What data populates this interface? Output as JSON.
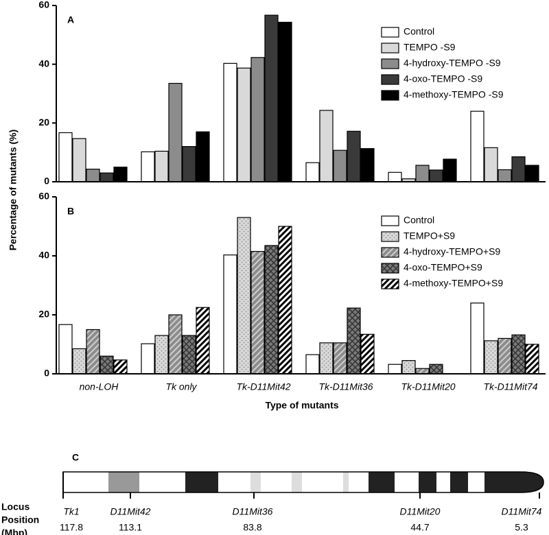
{
  "chart_data": [
    {
      "type": "bar",
      "panel": "A",
      "y_label": "Percentage of mutants (%)",
      "ylim": [
        0,
        60
      ],
      "yticks": [
        0,
        20,
        40,
        60
      ],
      "legend": "upper right",
      "series": [
        {
          "name": "Control",
          "color": "#ffffff",
          "values": [
            16.7,
            10.2,
            40.3,
            6.5,
            3.2,
            24.0
          ]
        },
        {
          "name": "TEMPO -S9",
          "color": "#d9d9d9",
          "values": [
            14.7,
            10.4,
            38.7,
            24.3,
            1.0,
            11.6
          ]
        },
        {
          "name": "4-hydroxy-TEMPO -S9",
          "color": "#8c8c8c",
          "values": [
            4.3,
            33.5,
            42.3,
            10.7,
            5.6,
            4.1
          ]
        },
        {
          "name": "4-oxo-TEMPO -S9",
          "color": "#3a3a3a",
          "values": [
            3.0,
            12.0,
            56.7,
            17.2,
            4.0,
            8.5
          ]
        },
        {
          "name": "4-methoxy-TEMPO -S9",
          "color": "#000000",
          "values": [
            5.0,
            17.0,
            54.3,
            11.3,
            7.7,
            5.6
          ]
        }
      ]
    },
    {
      "type": "bar",
      "panel": "B",
      "x_label": "Type of mutants",
      "categories": [
        "non-LOH",
        "Tk only",
        "Tk-D11Mit42",
        "Tk-D11Mit36",
        "Tk-D11Mit20",
        "Tk-D11Mit74"
      ],
      "ylim": [
        0,
        60
      ],
      "yticks": [
        0,
        20,
        40,
        60
      ],
      "legend": "upper right",
      "series": [
        {
          "name": "Control",
          "color": "#ffffff",
          "values": [
            16.7,
            10.2,
            40.3,
            6.5,
            3.2,
            24.0
          ]
        },
        {
          "name": "TEMPO+S9",
          "color": "#d9d9d9",
          "pattern": "dots",
          "values": [
            8.5,
            13.0,
            53.0,
            10.5,
            4.5,
            11.2
          ]
        },
        {
          "name": "4-hydroxy-TEMPO+S9",
          "color": "#8c8c8c",
          "pattern": "hatch",
          "values": [
            15.0,
            20.0,
            41.5,
            10.5,
            1.8,
            12.0
          ]
        },
        {
          "name": "4-oxo-TEMPO+S9",
          "color": "#7a7a7a",
          "pattern": "cross",
          "values": [
            6.0,
            13.0,
            43.5,
            22.3,
            3.2,
            13.2
          ]
        },
        {
          "name": "4-methoxy-TEMPO+S9",
          "color": "#000000",
          "pattern": "stripes",
          "values": [
            4.7,
            22.5,
            50.0,
            13.4,
            0,
            10.0
          ]
        }
      ]
    }
  ],
  "diagram": {
    "panel": "C",
    "row_label": [
      "Locus",
      "Position",
      "(Mbp)"
    ],
    "loci": [
      {
        "name": "Tk1",
        "position": 117.8
      },
      {
        "name": "D11Mit42",
        "position": 113.1
      },
      {
        "name": "D11Mit36",
        "position": 83.8
      },
      {
        "name": "D11Mit20",
        "position": 44.7
      },
      {
        "name": "D11Mit74",
        "position": 5.3
      }
    ]
  }
}
